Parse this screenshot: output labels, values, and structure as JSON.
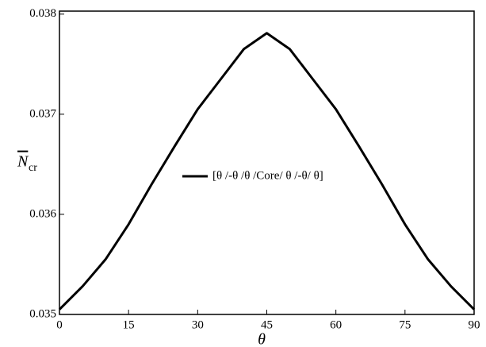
{
  "chart_data": {
    "type": "line",
    "xlabel": "θ",
    "ylabel": "N",
    "ylabel_sub": "cr",
    "x": [
      0,
      5,
      10,
      15,
      20,
      25,
      30,
      35,
      40,
      45,
      50,
      55,
      60,
      65,
      70,
      75,
      80,
      85,
      90
    ],
    "series": [
      {
        "name": "[θ /-θ /θ /Core/ θ /-θ/ θ]",
        "color": "#000000",
        "values": [
          0.03505,
          0.03528,
          0.03555,
          0.0359,
          0.0363,
          0.03668,
          0.03705,
          0.03735,
          0.03765,
          0.03781,
          0.03765,
          0.03735,
          0.03705,
          0.03668,
          0.0363,
          0.0359,
          0.03555,
          0.03528,
          0.03505
        ]
      }
    ],
    "xlim": [
      0,
      90
    ],
    "xticks": [
      0,
      15,
      30,
      45,
      60,
      75,
      90
    ],
    "ylim": [
      0.035,
      0.03803
    ],
    "yticks": [
      0.035,
      0.036,
      0.037,
      0.038
    ]
  }
}
